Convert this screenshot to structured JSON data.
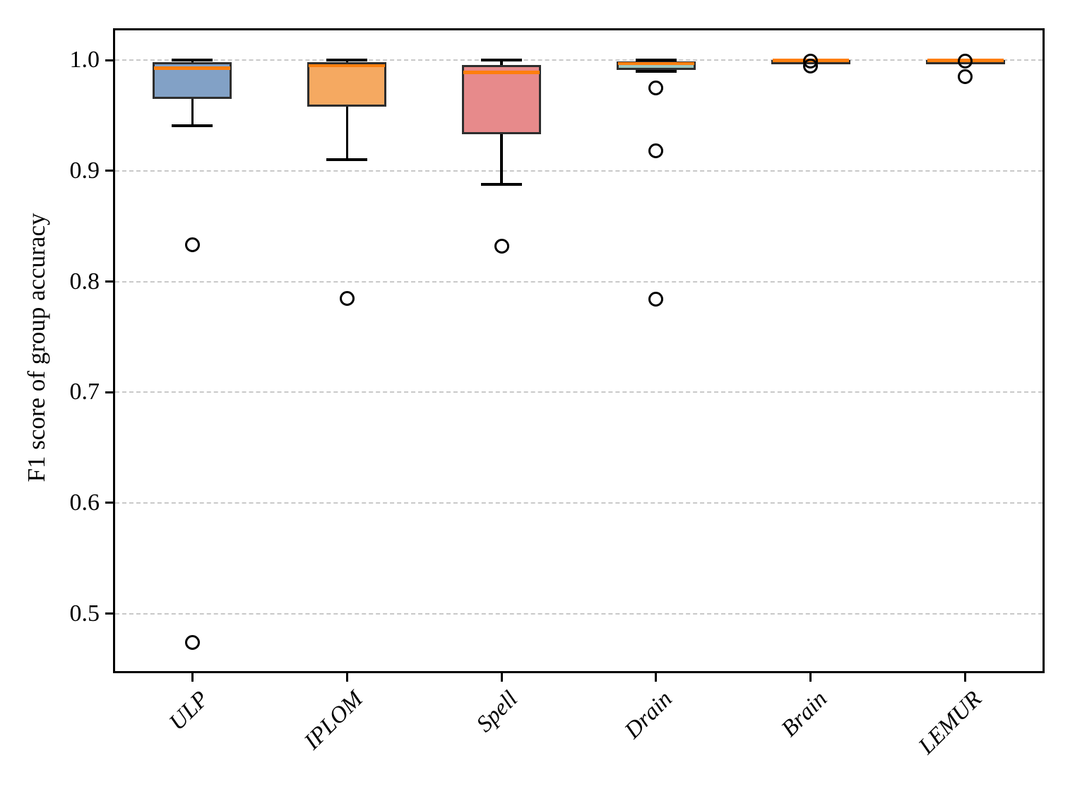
{
  "chart_data": {
    "type": "box",
    "title": "",
    "xlabel": "",
    "ylabel": "F1 score of group accuracy",
    "categories": [
      "ULP",
      "IPLOM",
      "Spell",
      "Drain",
      "Brain",
      "LEMUR"
    ],
    "y_ticks": [
      1.0,
      0.9,
      0.8,
      0.7,
      0.6,
      0.5
    ],
    "y_tick_labels": [
      "1.0",
      "0.9",
      "0.8",
      "0.7",
      "0.6",
      "0.5"
    ],
    "ylim": [
      0.448,
      1.027
    ],
    "grid": "horizontal-dashed",
    "legend": "none",
    "median_color": "#ff7f0e",
    "box_edge_color": "#2e2e2e",
    "whisker_color": "#000000",
    "series": [
      {
        "name": "ULP",
        "fill": "#82a1c6",
        "whislo": 0.941,
        "q1": 0.965,
        "med": 0.993,
        "q3": 0.998,
        "whishi": 1.0,
        "outliers": [
          0.833,
          0.474
        ]
      },
      {
        "name": "IPLOM",
        "fill": "#f5a961",
        "whislo": 0.91,
        "q1": 0.958,
        "med": 0.995,
        "q3": 0.998,
        "whishi": 1.0,
        "outliers": [
          0.785
        ]
      },
      {
        "name": "Spell",
        "fill": "#e78a8b",
        "whislo": 0.888,
        "q1": 0.933,
        "med": 0.989,
        "q3": 0.996,
        "whishi": 1.0,
        "outliers": [
          0.832
        ]
      },
      {
        "name": "Drain",
        "fill": "#9ec7be",
        "whislo": 0.99,
        "q1": 0.9915,
        "med": 0.997,
        "q3": 0.999,
        "whishi": 1.0,
        "outliers": [
          0.975,
          0.918,
          0.784
        ]
      },
      {
        "name": "Brain",
        "fill": "#82a1c6",
        "whislo": 1.0,
        "q1": 1.0,
        "med": 1.0,
        "q3": 1.0,
        "whishi": 1.0,
        "outliers": [
          0.999,
          0.995
        ]
      },
      {
        "name": "LEMUR",
        "fill": "#f5a961",
        "whislo": 1.0,
        "q1": 1.0,
        "med": 1.0,
        "q3": 1.0,
        "whishi": 1.0,
        "outliers": [
          0.999,
          0.985
        ]
      }
    ]
  }
}
